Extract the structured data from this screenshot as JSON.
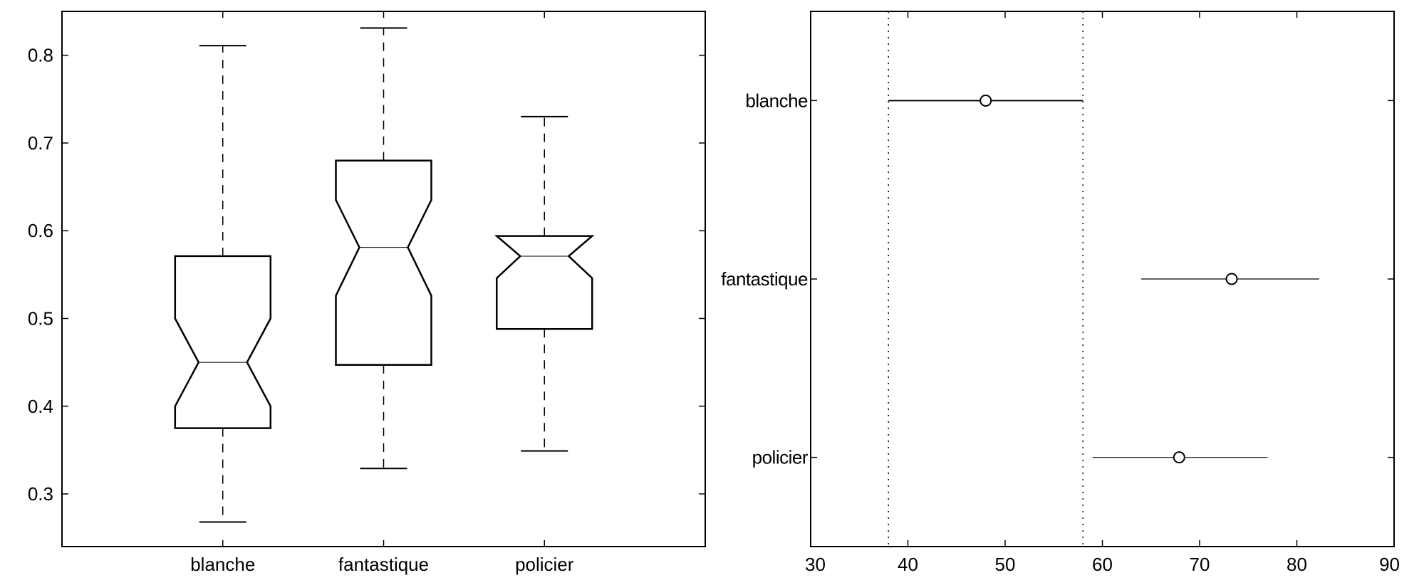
{
  "chart_data": [
    {
      "type": "boxplot",
      "notched": true,
      "categories": [
        "blanche",
        "fantastique",
        "policier"
      ],
      "ylim": [
        0.24,
        0.85
      ],
      "yticks": [
        0.3,
        0.4,
        0.5,
        0.6,
        0.7,
        0.8
      ],
      "ytick_labels": [
        "0.3",
        "0.4",
        "0.5",
        "0.6",
        "0.7",
        "0.8"
      ],
      "boxes": [
        {
          "name": "blanche",
          "min": 0.268,
          "q1": 0.375,
          "median": 0.45,
          "q3": 0.571,
          "max": 0.811,
          "notch_low": 0.4,
          "notch_high": 0.5
        },
        {
          "name": "fantastique",
          "min": 0.329,
          "q1": 0.447,
          "median": 0.581,
          "q3": 0.68,
          "max": 0.831,
          "notch_low": 0.526,
          "notch_high": 0.635
        },
        {
          "name": "policier",
          "min": 0.349,
          "q1": 0.488,
          "median": 0.571,
          "q3": 0.594,
          "max": 0.73,
          "notch_low": 0.546,
          "notch_high": 0.594
        }
      ]
    },
    {
      "type": "interval",
      "categories": [
        "blanche",
        "fantastique",
        "policier"
      ],
      "xlim": [
        30,
        90
      ],
      "xticks": [
        30,
        40,
        50,
        60,
        70,
        80,
        90
      ],
      "xtick_labels": [
        "30",
        "40",
        "50",
        "60",
        "70",
        "80",
        "90"
      ],
      "intervals": [
        {
          "name": "blanche",
          "estimate": 48.0,
          "low": 38.0,
          "high": 58.0
        },
        {
          "name": "fantastique",
          "estimate": 73.3,
          "low": 64.0,
          "high": 82.3
        },
        {
          "name": "policier",
          "estimate": 67.9,
          "low": 59.0,
          "high": 77.0
        }
      ],
      "reference_lines": [
        38.0,
        58.0
      ]
    }
  ]
}
